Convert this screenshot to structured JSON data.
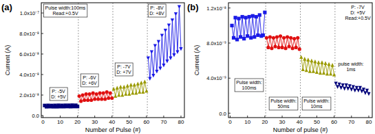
{
  "chart_data": [
    {
      "type": "line",
      "title": "(a)",
      "x_label": "Number of Pulse (#)",
      "y_label": "Current (A)",
      "xlim": [
        -1,
        82
      ],
      "xticks": [
        0,
        10,
        20,
        30,
        40,
        50,
        60,
        70,
        80
      ],
      "ylim": [
        -2e-09,
        1.1e-07
      ],
      "yticks": [
        {
          "value": 0,
          "label": "0.0"
        },
        {
          "value": 2e-08,
          "label": "2.0x10⁻⁸"
        },
        {
          "value": 4e-08,
          "label": "4.0x10⁻⁸"
        },
        {
          "value": 6e-08,
          "label": "6.0x10⁻⁸"
        },
        {
          "value": 8e-08,
          "label": "8.0x10⁻⁸"
        },
        {
          "value": 1e-07,
          "label": "1.0x10⁻⁷"
        }
      ],
      "annotations": [
        [
          "Pulse width:100ms",
          "Read:+0.5V"
        ],
        [
          "P: -5V",
          "D: +5V"
        ],
        [
          "P: -6V",
          "D: +6V"
        ],
        [
          "P: -7V",
          "D: +7V"
        ],
        [
          "P: -8V",
          "D: +8V"
        ]
      ],
      "series": [
        {
          "color": "#00007a",
          "marker": "square",
          "line_style": "solid",
          "x": [
            1,
            2,
            3,
            4,
            5,
            6,
            7,
            8,
            9,
            10,
            11,
            12,
            13,
            14,
            15,
            16,
            17,
            18,
            19,
            20
          ],
          "values": [
            9.8e-09,
            8.6e-09,
            9.9e-09,
            8.7e-09,
            9.8e-09,
            8.6e-09,
            9.9e-09,
            8.6e-09,
            1e-08,
            8.7e-09,
            9.9e-09,
            8.7e-09,
            1e-08,
            8.8e-09,
            1e-08,
            8.7e-09,
            1.01e-08,
            8.8e-09,
            1e-08,
            8.8e-09
          ]
        },
        {
          "color": "#e01010",
          "marker": "circle",
          "line_style": "solid",
          "x": [
            21,
            22,
            23,
            24,
            25,
            26,
            27,
            28,
            29,
            30,
            31,
            32,
            33,
            34,
            35,
            36,
            37,
            38,
            39,
            40
          ],
          "values": [
            1.9e-08,
            1.4e-08,
            2e-08,
            1.5e-08,
            2.1e-08,
            1.5e-08,
            2.1e-08,
            1.5e-08,
            2.2e-08,
            1.6e-08,
            2.1e-08,
            1.6e-08,
            2.2e-08,
            1.6e-08,
            2.2e-08,
            1.6e-08,
            2.3e-08,
            1.7e-08,
            2.2e-08,
            1.7e-08
          ]
        },
        {
          "color": "#9a9a00",
          "marker": "triangle",
          "line_style": "solid",
          "x": [
            41,
            42,
            43,
            44,
            45,
            46,
            47,
            48,
            49,
            50,
            51,
            52,
            53,
            54,
            55,
            56,
            57,
            58,
            59,
            60
          ],
          "values": [
            2.6e-08,
            1.9e-08,
            2.7e-08,
            2e-08,
            2.8e-08,
            2e-08,
            2.8e-08,
            2.1e-08,
            2.9e-08,
            2.1e-08,
            3e-08,
            2.2e-08,
            3e-08,
            2.2e-08,
            3.1e-08,
            2.3e-08,
            3.2e-08,
            2.3e-08,
            3.3e-08,
            2.4e-08
          ]
        },
        {
          "color": "#1a1ae6",
          "marker": "triangle-down",
          "line_style": "solid",
          "x": [
            61,
            62,
            63,
            64,
            65,
            66,
            67,
            68,
            69,
            70,
            71,
            72,
            73,
            74,
            75,
            76,
            77,
            78,
            79,
            80
          ],
          "values": [
            5.6e-08,
            3.6e-08,
            6.2e-08,
            3.9e-08,
            6.8e-08,
            4.3e-08,
            7.2e-08,
            4.6e-08,
            7.8e-08,
            4.9e-08,
            8.3e-08,
            5.3e-08,
            8.8e-08,
            5.6e-08,
            9.3e-08,
            5.9e-08,
            9.9e-08,
            6.2e-08,
            1.06e-07,
            6.5e-08
          ]
        }
      ]
    },
    {
      "type": "line",
      "title": "(b)",
      "x_label": "Number of pulse (#)",
      "y_label": "Current (A)",
      "xlim": [
        -1,
        82
      ],
      "xticks": [
        0,
        10,
        20,
        30,
        40,
        50,
        60,
        70,
        80
      ],
      "ylim": [
        -5e-10,
        1.26e-08
      ],
      "yticks": [
        {
          "value": 0,
          "label": "0.0"
        },
        {
          "value": 4e-09,
          "label": "4.0x10⁻⁹"
        },
        {
          "value": 8e-09,
          "label": "8.0x10⁻⁹"
        },
        {
          "value": 1.2e-08,
          "label": "1.2x10⁻⁸"
        }
      ],
      "annotations": [
        [
          "Pulse width:",
          "100ms"
        ],
        [
          "Pulse width:",
          "50ms"
        ],
        [
          "Pulse width:",
          "10ms"
        ],
        [
          "pulse width:",
          "1ms"
        ],
        [
          "P: -7V",
          "D: +5V",
          "Read:+0.5V"
        ]
      ],
      "series": [
        {
          "color": "#1a1ae6",
          "marker": "square",
          "line_style": "solid",
          "x": [
            1,
            2,
            3,
            4,
            5,
            6,
            7,
            8,
            9,
            10,
            11,
            12,
            13,
            14,
            15,
            16,
            17,
            18,
            19,
            20
          ],
          "values": [
            1e-08,
            8.6e-09,
            1.09e-08,
            8.4e-09,
            1.08e-08,
            8.7e-09,
            1.1e-08,
            8.5e-09,
            1.09e-08,
            8.8e-09,
            1.1e-08,
            8.6e-09,
            1.11e-08,
            8.7e-09,
            1.1e-08,
            8.9e-09,
            1.12e-08,
            8.8e-09,
            8.9e-09,
            1.15e-08
          ]
        },
        {
          "color": "#e01010",
          "marker": "circle",
          "line_style": "solid",
          "x": [
            21,
            22,
            23,
            24,
            25,
            26,
            27,
            28,
            29,
            30,
            31,
            32,
            33,
            34,
            35,
            36,
            37,
            38,
            39,
            40
          ],
          "values": [
            8.6e-09,
            7.5e-09,
            8.7e-09,
            7.4e-09,
            8.6e-09,
            7.6e-09,
            8.7e-09,
            7.5e-09,
            8.8e-09,
            7.5e-09,
            8.6e-09,
            7.4e-09,
            8.7e-09,
            7.6e-09,
            8.6e-09,
            7.4e-09,
            8.5e-09,
            7.5e-09,
            8.6e-09,
            7.3e-09
          ]
        },
        {
          "color": "#9a9a00",
          "marker": "triangle",
          "line_style": "solid",
          "x": [
            41,
            42,
            43,
            44,
            45,
            46,
            47,
            48,
            49,
            50,
            51,
            52,
            53,
            54,
            55,
            56,
            57,
            58,
            59,
            60
          ],
          "values": [
            6.4e-09,
            5e-09,
            6.2e-09,
            4.9e-09,
            6.1e-09,
            4.8e-09,
            6e-09,
            4.8e-09,
            5.9e-09,
            4.7e-09,
            5.8e-09,
            4.6e-09,
            5.8e-09,
            4.6e-09,
            5.7e-09,
            4.5e-09,
            5.6e-09,
            4.5e-09,
            5.5e-09,
            4.4e-09
          ]
        },
        {
          "color": "#00007a",
          "marker": "triangle-down",
          "line_style": "solid",
          "x": [
            61,
            62,
            63,
            64,
            65,
            66,
            67,
            68,
            69,
            70,
            71,
            72,
            73,
            74,
            75,
            76,
            77,
            78,
            79,
            80
          ],
          "values": [
            3.4e-09,
            3e-09,
            3.3e-09,
            2.9e-09,
            3.2e-09,
            2.8e-09,
            3.2e-09,
            2.8e-09,
            3.1e-09,
            2.7e-09,
            3e-09,
            2.6e-09,
            2.9e-09,
            2.6e-09,
            2.9e-09,
            2.5e-09,
            2.7e-09,
            2.3e-09,
            2.6e-09,
            2.2e-09
          ]
        }
      ]
    }
  ]
}
